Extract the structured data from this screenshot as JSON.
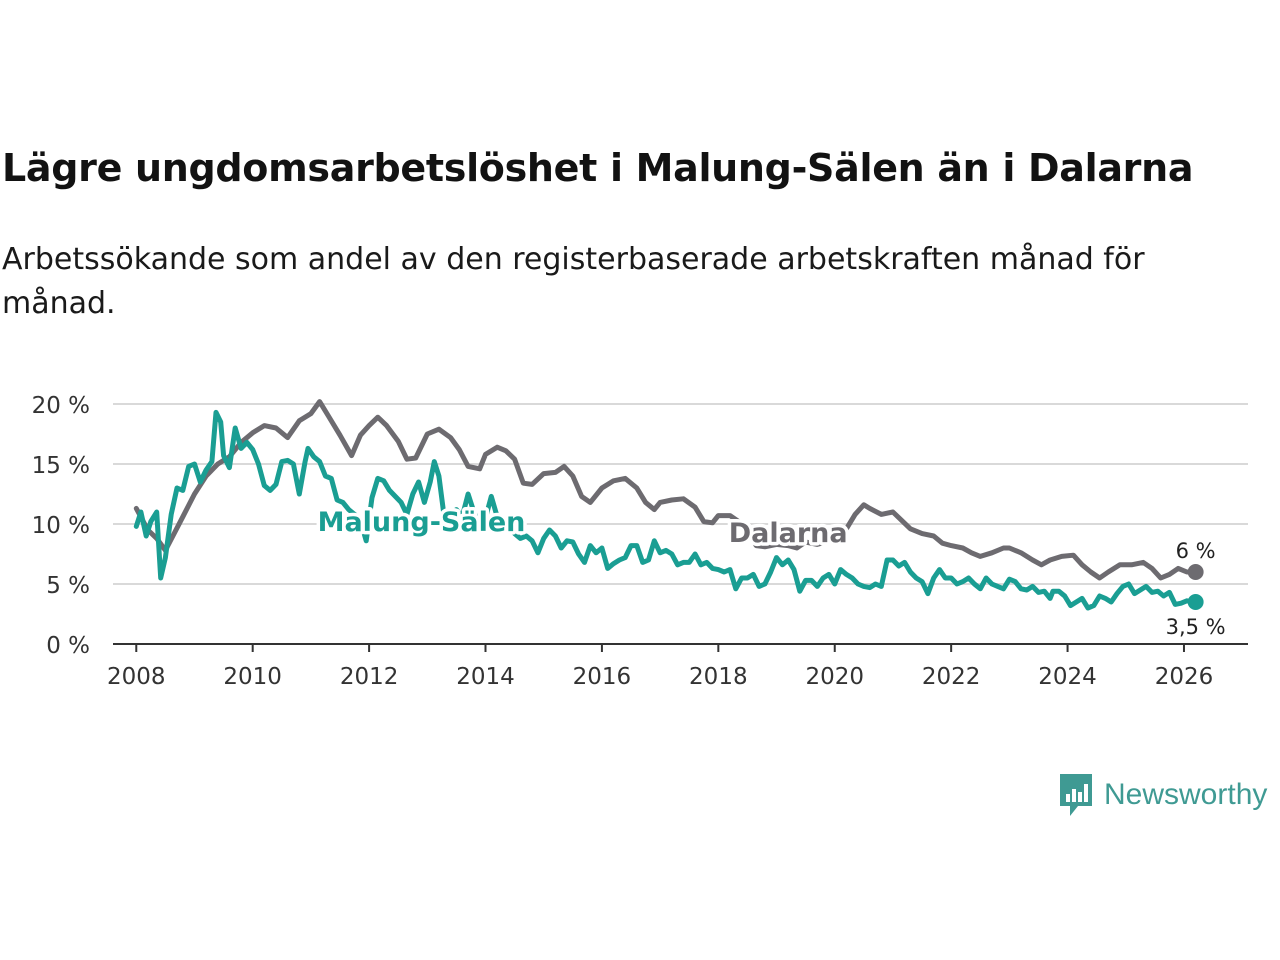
{
  "title": "Lägre ungdomsarbetslöshet i Malung-Sälen än i Dalarna",
  "subtitle": "Arbetssökande som andel av den registerbaserade arbetskraften månad för månad.",
  "brand": {
    "name": "Newsworthy",
    "color": "#3f9a93"
  },
  "chart_data": {
    "type": "line",
    "title": "Lägre ungdomsarbetslöshet i Malung-Sälen än i Dalarna",
    "xlabel": "",
    "ylabel": "",
    "xlim": [
      2007.6,
      2027.1
    ],
    "ylim": [
      0,
      20
    ],
    "y_ticks": [
      0,
      5,
      10,
      15,
      20
    ],
    "y_tick_labels": [
      "0 %",
      "5 %",
      "10 %",
      "15 %",
      "20 %"
    ],
    "x_ticks": [
      2008,
      2010,
      2012,
      2014,
      2016,
      2018,
      2020,
      2022,
      2024,
      2026
    ],
    "x_tick_labels": [
      "2008",
      "2010",
      "2012",
      "2014",
      "2016",
      "2018",
      "2020",
      "2022",
      "2024",
      "2026"
    ],
    "grid": true,
    "series": [
      {
        "name": "Dalarna",
        "color": "#6d6b70",
        "end_label": "6 %",
        "points": [
          [
            2008.0,
            11.3
          ],
          [
            2008.2,
            9.5
          ],
          [
            2008.35,
            8.8
          ],
          [
            2008.5,
            7.8
          ],
          [
            2008.65,
            9.2
          ],
          [
            2008.8,
            10.6
          ],
          [
            2009.0,
            12.5
          ],
          [
            2009.2,
            14.0
          ],
          [
            2009.4,
            15.0
          ],
          [
            2009.6,
            15.6
          ],
          [
            2009.8,
            16.8
          ],
          [
            2010.0,
            17.6
          ],
          [
            2010.2,
            18.2
          ],
          [
            2010.4,
            18.0
          ],
          [
            2010.6,
            17.2
          ],
          [
            2010.8,
            18.6
          ],
          [
            2011.0,
            19.2
          ],
          [
            2011.15,
            20.2
          ],
          [
            2011.3,
            19.0
          ],
          [
            2011.5,
            17.4
          ],
          [
            2011.7,
            15.7
          ],
          [
            2011.85,
            17.4
          ],
          [
            2012.0,
            18.2
          ],
          [
            2012.15,
            18.9
          ],
          [
            2012.3,
            18.2
          ],
          [
            2012.5,
            16.9
          ],
          [
            2012.65,
            15.4
          ],
          [
            2012.8,
            15.5
          ],
          [
            2013.0,
            17.5
          ],
          [
            2013.2,
            17.9
          ],
          [
            2013.4,
            17.2
          ],
          [
            2013.55,
            16.2
          ],
          [
            2013.7,
            14.8
          ],
          [
            2013.9,
            14.6
          ],
          [
            2014.0,
            15.8
          ],
          [
            2014.2,
            16.4
          ],
          [
            2014.35,
            16.1
          ],
          [
            2014.5,
            15.4
          ],
          [
            2014.65,
            13.4
          ],
          [
            2014.8,
            13.3
          ],
          [
            2015.0,
            14.2
          ],
          [
            2015.2,
            14.3
          ],
          [
            2015.35,
            14.8
          ],
          [
            2015.5,
            14.0
          ],
          [
            2015.65,
            12.3
          ],
          [
            2015.8,
            11.8
          ],
          [
            2016.0,
            13.0
          ],
          [
            2016.2,
            13.6
          ],
          [
            2016.4,
            13.8
          ],
          [
            2016.6,
            13.0
          ],
          [
            2016.75,
            11.8
          ],
          [
            2016.9,
            11.2
          ],
          [
            2017.0,
            11.8
          ],
          [
            2017.2,
            12.0
          ],
          [
            2017.4,
            12.1
          ],
          [
            2017.6,
            11.4
          ],
          [
            2017.75,
            10.2
          ],
          [
            2017.9,
            10.1
          ],
          [
            2018.0,
            10.7
          ],
          [
            2018.2,
            10.7
          ],
          [
            2018.35,
            10.2
          ],
          [
            2018.5,
            9.4
          ],
          [
            2018.65,
            8.2
          ],
          [
            2018.8,
            8.1
          ],
          [
            2019.0,
            8.3
          ],
          [
            2019.2,
            8.2
          ],
          [
            2019.35,
            8.0
          ],
          [
            2019.5,
            8.5
          ],
          [
            2019.7,
            8.3
          ],
          [
            2019.85,
            8.5
          ],
          [
            2020.0,
            9.3
          ],
          [
            2020.2,
            9.6
          ],
          [
            2020.35,
            10.8
          ],
          [
            2020.5,
            11.6
          ],
          [
            2020.6,
            11.3
          ],
          [
            2020.8,
            10.8
          ],
          [
            2021.0,
            11.0
          ],
          [
            2021.15,
            10.3
          ],
          [
            2021.3,
            9.6
          ],
          [
            2021.5,
            9.2
          ],
          [
            2021.7,
            9.0
          ],
          [
            2021.85,
            8.4
          ],
          [
            2022.0,
            8.2
          ],
          [
            2022.2,
            8.0
          ],
          [
            2022.35,
            7.6
          ],
          [
            2022.5,
            7.3
          ],
          [
            2022.7,
            7.6
          ],
          [
            2022.9,
            8.0
          ],
          [
            2023.0,
            8.0
          ],
          [
            2023.2,
            7.6
          ],
          [
            2023.4,
            7.0
          ],
          [
            2023.55,
            6.6
          ],
          [
            2023.7,
            7.0
          ],
          [
            2023.9,
            7.3
          ],
          [
            2024.1,
            7.4
          ],
          [
            2024.25,
            6.6
          ],
          [
            2024.4,
            6.0
          ],
          [
            2024.55,
            5.5
          ],
          [
            2024.7,
            6.0
          ],
          [
            2024.9,
            6.6
          ],
          [
            2025.1,
            6.6
          ],
          [
            2025.3,
            6.8
          ],
          [
            2025.45,
            6.3
          ],
          [
            2025.6,
            5.5
          ],
          [
            2025.75,
            5.8
          ],
          [
            2025.9,
            6.3
          ],
          [
            2026.05,
            6.0
          ],
          [
            2026.2,
            6.0
          ]
        ]
      },
      {
        "name": "Malung-Sälen",
        "color": "#1a9e93",
        "end_label": "3,5 %",
        "points": [
          [
            2008.0,
            9.8
          ],
          [
            2008.08,
            11.0
          ],
          [
            2008.17,
            9.0
          ],
          [
            2008.25,
            10.2
          ],
          [
            2008.35,
            11.0
          ],
          [
            2008.42,
            5.5
          ],
          [
            2008.5,
            7.2
          ],
          [
            2008.6,
            10.8
          ],
          [
            2008.7,
            13.0
          ],
          [
            2008.8,
            12.8
          ],
          [
            2008.9,
            14.8
          ],
          [
            2009.0,
            15.0
          ],
          [
            2009.1,
            13.5
          ],
          [
            2009.2,
            14.5
          ],
          [
            2009.3,
            15.2
          ],
          [
            2009.37,
            19.3
          ],
          [
            2009.45,
            18.5
          ],
          [
            2009.5,
            15.7
          ],
          [
            2009.6,
            14.7
          ],
          [
            2009.7,
            18.0
          ],
          [
            2009.8,
            16.3
          ],
          [
            2009.9,
            16.8
          ],
          [
            2010.0,
            16.2
          ],
          [
            2010.1,
            15.0
          ],
          [
            2010.2,
            13.2
          ],
          [
            2010.3,
            12.8
          ],
          [
            2010.4,
            13.3
          ],
          [
            2010.5,
            15.2
          ],
          [
            2010.6,
            15.3
          ],
          [
            2010.7,
            15.0
          ],
          [
            2010.8,
            12.5
          ],
          [
            2010.9,
            15.2
          ],
          [
            2010.95,
            16.3
          ],
          [
            2011.05,
            15.6
          ],
          [
            2011.15,
            15.2
          ],
          [
            2011.25,
            14.0
          ],
          [
            2011.35,
            13.8
          ],
          [
            2011.45,
            12.0
          ],
          [
            2011.55,
            11.8
          ],
          [
            2011.65,
            11.2
          ],
          [
            2011.75,
            10.8
          ],
          [
            2011.85,
            10.3
          ],
          [
            2011.95,
            8.6
          ],
          [
            2012.05,
            12.2
          ],
          [
            2012.15,
            13.8
          ],
          [
            2012.25,
            13.6
          ],
          [
            2012.35,
            12.8
          ],
          [
            2012.45,
            12.3
          ],
          [
            2012.55,
            11.8
          ],
          [
            2012.65,
            10.8
          ],
          [
            2012.75,
            12.5
          ],
          [
            2012.85,
            13.5
          ],
          [
            2012.95,
            11.8
          ],
          [
            2013.05,
            13.5
          ],
          [
            2013.12,
            15.2
          ],
          [
            2013.2,
            14.0
          ],
          [
            2013.3,
            10.2
          ],
          [
            2013.4,
            10.8
          ],
          [
            2013.5,
            11.2
          ],
          [
            2013.6,
            10.6
          ],
          [
            2013.7,
            12.5
          ],
          [
            2013.8,
            11.0
          ],
          [
            2013.9,
            10.0
          ],
          [
            2014.0,
            10.5
          ],
          [
            2014.1,
            12.3
          ],
          [
            2014.2,
            10.6
          ],
          [
            2014.3,
            10.5
          ],
          [
            2014.4,
            9.8
          ],
          [
            2014.5,
            9.2
          ],
          [
            2014.6,
            8.8
          ],
          [
            2014.7,
            9.0
          ],
          [
            2014.8,
            8.6
          ],
          [
            2014.9,
            7.6
          ],
          [
            2015.0,
            8.8
          ],
          [
            2015.1,
            9.5
          ],
          [
            2015.2,
            9.0
          ],
          [
            2015.3,
            8.0
          ],
          [
            2015.4,
            8.6
          ],
          [
            2015.5,
            8.5
          ],
          [
            2015.6,
            7.5
          ],
          [
            2015.7,
            6.8
          ],
          [
            2015.8,
            8.2
          ],
          [
            2015.9,
            7.6
          ],
          [
            2016.0,
            8.0
          ],
          [
            2016.1,
            6.3
          ],
          [
            2016.2,
            6.7
          ],
          [
            2016.3,
            7.0
          ],
          [
            2016.4,
            7.2
          ],
          [
            2016.5,
            8.2
          ],
          [
            2016.6,
            8.2
          ],
          [
            2016.7,
            6.8
          ],
          [
            2016.8,
            7.0
          ],
          [
            2016.9,
            8.6
          ],
          [
            2017.0,
            7.6
          ],
          [
            2017.1,
            7.8
          ],
          [
            2017.2,
            7.5
          ],
          [
            2017.3,
            6.6
          ],
          [
            2017.4,
            6.8
          ],
          [
            2017.5,
            6.8
          ],
          [
            2017.6,
            7.5
          ],
          [
            2017.7,
            6.6
          ],
          [
            2017.8,
            6.8
          ],
          [
            2017.9,
            6.3
          ],
          [
            2018.0,
            6.2
          ],
          [
            2018.1,
            6.0
          ],
          [
            2018.2,
            6.2
          ],
          [
            2018.3,
            4.6
          ],
          [
            2018.4,
            5.5
          ],
          [
            2018.5,
            5.5
          ],
          [
            2018.6,
            5.8
          ],
          [
            2018.7,
            4.8
          ],
          [
            2018.8,
            5.0
          ],
          [
            2018.9,
            6.0
          ],
          [
            2019.0,
            7.2
          ],
          [
            2019.1,
            6.6
          ],
          [
            2019.2,
            7.0
          ],
          [
            2019.3,
            6.2
          ],
          [
            2019.4,
            4.4
          ],
          [
            2019.5,
            5.3
          ],
          [
            2019.6,
            5.3
          ],
          [
            2019.7,
            4.8
          ],
          [
            2019.8,
            5.5
          ],
          [
            2019.9,
            5.8
          ],
          [
            2020.0,
            5.0
          ],
          [
            2020.1,
            6.2
          ],
          [
            2020.2,
            5.8
          ],
          [
            2020.3,
            5.5
          ],
          [
            2020.4,
            5.0
          ],
          [
            2020.5,
            4.8
          ],
          [
            2020.6,
            4.7
          ],
          [
            2020.7,
            5.0
          ],
          [
            2020.8,
            4.8
          ],
          [
            2020.9,
            7.0
          ],
          [
            2021.0,
            7.0
          ],
          [
            2021.1,
            6.5
          ],
          [
            2021.2,
            6.8
          ],
          [
            2021.3,
            6.0
          ],
          [
            2021.4,
            5.5
          ],
          [
            2021.5,
            5.2
          ],
          [
            2021.6,
            4.2
          ],
          [
            2021.7,
            5.5
          ],
          [
            2021.8,
            6.2
          ],
          [
            2021.9,
            5.5
          ],
          [
            2022.0,
            5.5
          ],
          [
            2022.1,
            5.0
          ],
          [
            2022.2,
            5.2
          ],
          [
            2022.3,
            5.5
          ],
          [
            2022.4,
            5.0
          ],
          [
            2022.5,
            4.6
          ],
          [
            2022.6,
            5.5
          ],
          [
            2022.7,
            5.0
          ],
          [
            2022.8,
            4.8
          ],
          [
            2022.9,
            4.6
          ],
          [
            2023.0,
            5.4
          ],
          [
            2023.1,
            5.2
          ],
          [
            2023.2,
            4.6
          ],
          [
            2023.3,
            4.5
          ],
          [
            2023.4,
            4.8
          ],
          [
            2023.5,
            4.3
          ],
          [
            2023.6,
            4.4
          ],
          [
            2023.7,
            3.8
          ],
          [
            2023.75,
            4.4
          ],
          [
            2023.85,
            4.4
          ],
          [
            2023.95,
            4.0
          ],
          [
            2024.05,
            3.2
          ],
          [
            2024.15,
            3.5
          ],
          [
            2024.25,
            3.8
          ],
          [
            2024.35,
            3.0
          ],
          [
            2024.45,
            3.2
          ],
          [
            2024.55,
            4.0
          ],
          [
            2024.65,
            3.8
          ],
          [
            2024.75,
            3.5
          ],
          [
            2024.85,
            4.2
          ],
          [
            2024.95,
            4.8
          ],
          [
            2025.05,
            5.0
          ],
          [
            2025.15,
            4.2
          ],
          [
            2025.25,
            4.5
          ],
          [
            2025.35,
            4.8
          ],
          [
            2025.45,
            4.3
          ],
          [
            2025.55,
            4.4
          ],
          [
            2025.65,
            4.0
          ],
          [
            2025.75,
            4.3
          ],
          [
            2025.85,
            3.3
          ],
          [
            2025.95,
            3.4
          ],
          [
            2026.05,
            3.6
          ],
          [
            2026.15,
            3.5
          ],
          [
            2026.2,
            3.5
          ]
        ]
      }
    ],
    "annotations": [
      {
        "text": "Malung-Sälen",
        "series": "Malung-Sälen",
        "x": 2012.9,
        "y": 9.4
      },
      {
        "text": "Dalarna",
        "series": "Dalarna",
        "x": 2019.2,
        "y": 8.5
      }
    ]
  }
}
